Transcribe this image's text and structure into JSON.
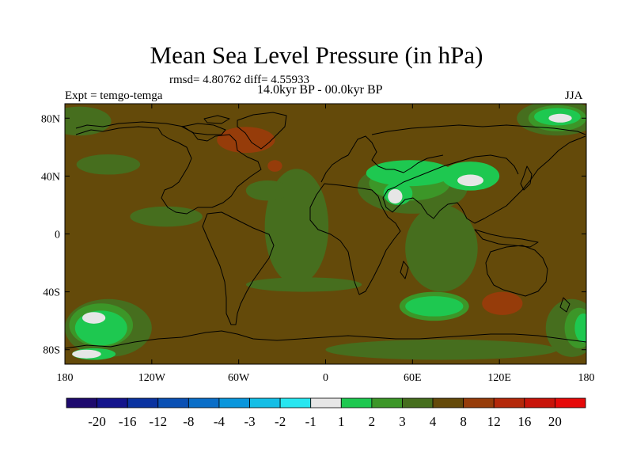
{
  "chart_data": {
    "type": "heatmap",
    "title": "Mean Sea Level Pressure (in hPa)",
    "stats_line": "rmsd= 4.80762 diff= 4.55933",
    "period": "14.0kyr BP - 00.0kyr BP",
    "experiment": "Expt = temgo-temga",
    "season": "JJA",
    "x_range": [
      -180,
      180
    ],
    "y_range": [
      -90,
      90
    ],
    "x_ticks": [
      {
        "value": -180,
        "label": "180"
      },
      {
        "value": -120,
        "label": "120W"
      },
      {
        "value": -60,
        "label": "60W"
      },
      {
        "value": 0,
        "label": "0"
      },
      {
        "value": 60,
        "label": "60E"
      },
      {
        "value": 120,
        "label": "120E"
      },
      {
        "value": 180,
        "label": "180"
      }
    ],
    "y_ticks": [
      {
        "value": 80,
        "label": "80N"
      },
      {
        "value": 40,
        "label": "40N"
      },
      {
        "value": 0,
        "label": "0"
      },
      {
        "value": -40,
        "label": "40S"
      },
      {
        "value": -80,
        "label": "80S"
      }
    ],
    "colorbar": {
      "colors": [
        "#1e0a6e",
        "#14148c",
        "#0a32a0",
        "#0a50b4",
        "#0a6ec8",
        "#0a96dc",
        "#14bee6",
        "#28e6f0",
        "#e6e6e6",
        "#1ec850",
        "#3c9628",
        "#466e1e",
        "#644a0a",
        "#963c0a",
        "#b4280a",
        "#c8140a",
        "#e60a0a"
      ],
      "labels": [
        "-20",
        "-16",
        "-12",
        "-8",
        "-4",
        "-3",
        "-2",
        "-1",
        "1",
        "2",
        "3",
        "4",
        "8",
        "12",
        "16",
        "20"
      ]
    },
    "regions": [
      {
        "level": "8",
        "color": "#644a0a",
        "shape": "rect",
        "lon": [
          -180,
          180
        ],
        "lat": [
          -90,
          90
        ]
      },
      {
        "level": "4",
        "color": "#466e1e",
        "shape": "ellipse",
        "lon": -20,
        "lat": 5,
        "rx": 22,
        "ry": 40
      },
      {
        "level": "4",
        "color": "#466e1e",
        "shape": "ellipse",
        "lon": 80,
        "lat": -10,
        "rx": 25,
        "ry": 30
      },
      {
        "level": "4",
        "color": "#466e1e",
        "shape": "ellipse",
        "lon": -110,
        "lat": 12,
        "rx": 25,
        "ry": 7
      },
      {
        "level": "4",
        "color": "#466e1e",
        "shape": "ellipse",
        "lon": -40,
        "lat": 30,
        "rx": 15,
        "ry": 7
      },
      {
        "level": "4",
        "color": "#466e1e",
        "shape": "ellipse",
        "lon": 80,
        "lat": -80,
        "rx": 80,
        "ry": 7
      },
      {
        "level": "4",
        "color": "#466e1e",
        "shape": "ellipse",
        "lon": -150,
        "lat": 48,
        "rx": 22,
        "ry": 7
      },
      {
        "level": "4",
        "color": "#466e1e",
        "shape": "ellipse",
        "lon": 60,
        "lat": 32,
        "rx": 38,
        "ry": 18
      },
      {
        "level": "4",
        "color": "#466e1e",
        "shape": "ellipse",
        "lon": -150,
        "lat": -65,
        "rx": 30,
        "ry": 20
      },
      {
        "level": "4",
        "color": "#466e1e",
        "shape": "ellipse",
        "lon": 170,
        "lat": -65,
        "rx": 18,
        "ry": 20
      },
      {
        "level": "4",
        "color": "#466e1e",
        "shape": "ellipse",
        "lon": 160,
        "lat": 80,
        "rx": 28,
        "ry": 12
      },
      {
        "level": "4",
        "color": "#466e1e",
        "shape": "ellipse",
        "lon": -170,
        "lat": 78,
        "rx": 22,
        "ry": 10
      },
      {
        "level": "4",
        "color": "#466e1e",
        "shape": "ellipse",
        "lon": -15,
        "lat": -35,
        "rx": 40,
        "ry": 5
      },
      {
        "level": "3",
        "color": "#3c9628",
        "shape": "ellipse",
        "lon": 58,
        "lat": 35,
        "rx": 28,
        "ry": 12
      },
      {
        "level": "3",
        "color": "#3c9628",
        "shape": "ellipse",
        "lon": 75,
        "lat": -50,
        "rx": 24,
        "ry": 10
      },
      {
        "level": "3",
        "color": "#3c9628",
        "shape": "ellipse",
        "lon": -155,
        "lat": -63,
        "rx": 22,
        "ry": 15
      },
      {
        "level": "3",
        "color": "#3c9628",
        "shape": "ellipse",
        "lon": 160,
        "lat": 80,
        "rx": 20,
        "ry": 9
      },
      {
        "level": "3",
        "color": "#3c9628",
        "shape": "ellipse",
        "lon": 175,
        "lat": -65,
        "rx": 10,
        "ry": 14
      },
      {
        "level": "2",
        "color": "#1ec850",
        "shape": "ellipse",
        "lon": 58,
        "lat": 42,
        "rx": 30,
        "ry": 9
      },
      {
        "level": "2",
        "color": "#1ec850",
        "shape": "ellipse",
        "lon": 100,
        "lat": 40,
        "rx": 20,
        "ry": 10
      },
      {
        "level": "2",
        "color": "#1ec850",
        "shape": "ellipse",
        "lon": 50,
        "lat": 28,
        "rx": 10,
        "ry": 8
      },
      {
        "level": "2",
        "color": "#1ec850",
        "shape": "ellipse",
        "lon": 75,
        "lat": -50,
        "rx": 20,
        "ry": 7
      },
      {
        "level": "2",
        "color": "#1ec850",
        "shape": "ellipse",
        "lon": -155,
        "lat": -65,
        "rx": 18,
        "ry": 12
      },
      {
        "level": "2",
        "color": "#1ec850",
        "shape": "ellipse",
        "lon": 160,
        "lat": 81,
        "rx": 16,
        "ry": 6
      },
      {
        "level": "2",
        "color": "#1ec850",
        "shape": "ellipse",
        "lon": 178,
        "lat": -65,
        "rx": 6,
        "ry": 10
      },
      {
        "level": "2",
        "color": "#1ec850",
        "shape": "ellipse",
        "lon": -160,
        "lat": -83,
        "rx": 15,
        "ry": 4
      },
      {
        "level": "1",
        "color": "#e6e6e6",
        "shape": "ellipse",
        "lon": 100,
        "lat": 37,
        "rx": 9,
        "ry": 4
      },
      {
        "level": "1",
        "color": "#e6e6e6",
        "shape": "ellipse",
        "lon": 48,
        "lat": 26,
        "rx": 5,
        "ry": 5
      },
      {
        "level": "1",
        "color": "#e6e6e6",
        "shape": "ellipse",
        "lon": -160,
        "lat": -58,
        "rx": 8,
        "ry": 4
      },
      {
        "level": "1",
        "color": "#e6e6e6",
        "shape": "ellipse",
        "lon": 162,
        "lat": 80,
        "rx": 8,
        "ry": 3
      },
      {
        "level": "1",
        "color": "#e6e6e6",
        "shape": "ellipse",
        "lon": -165,
        "lat": -83,
        "rx": 10,
        "ry": 3
      },
      {
        "level": "12",
        "color": "#963c0a",
        "shape": "ellipse",
        "lon": 122,
        "lat": -48,
        "rx": 14,
        "ry": 8
      },
      {
        "level": "12",
        "color": "#963c0a",
        "shape": "ellipse",
        "lon": -55,
        "lat": 65,
        "rx": 20,
        "ry": 9
      },
      {
        "level": "12",
        "color": "#963c0a",
        "shape": "ellipse",
        "lon": -35,
        "lat": 47,
        "rx": 5,
        "ry": 4
      }
    ]
  }
}
